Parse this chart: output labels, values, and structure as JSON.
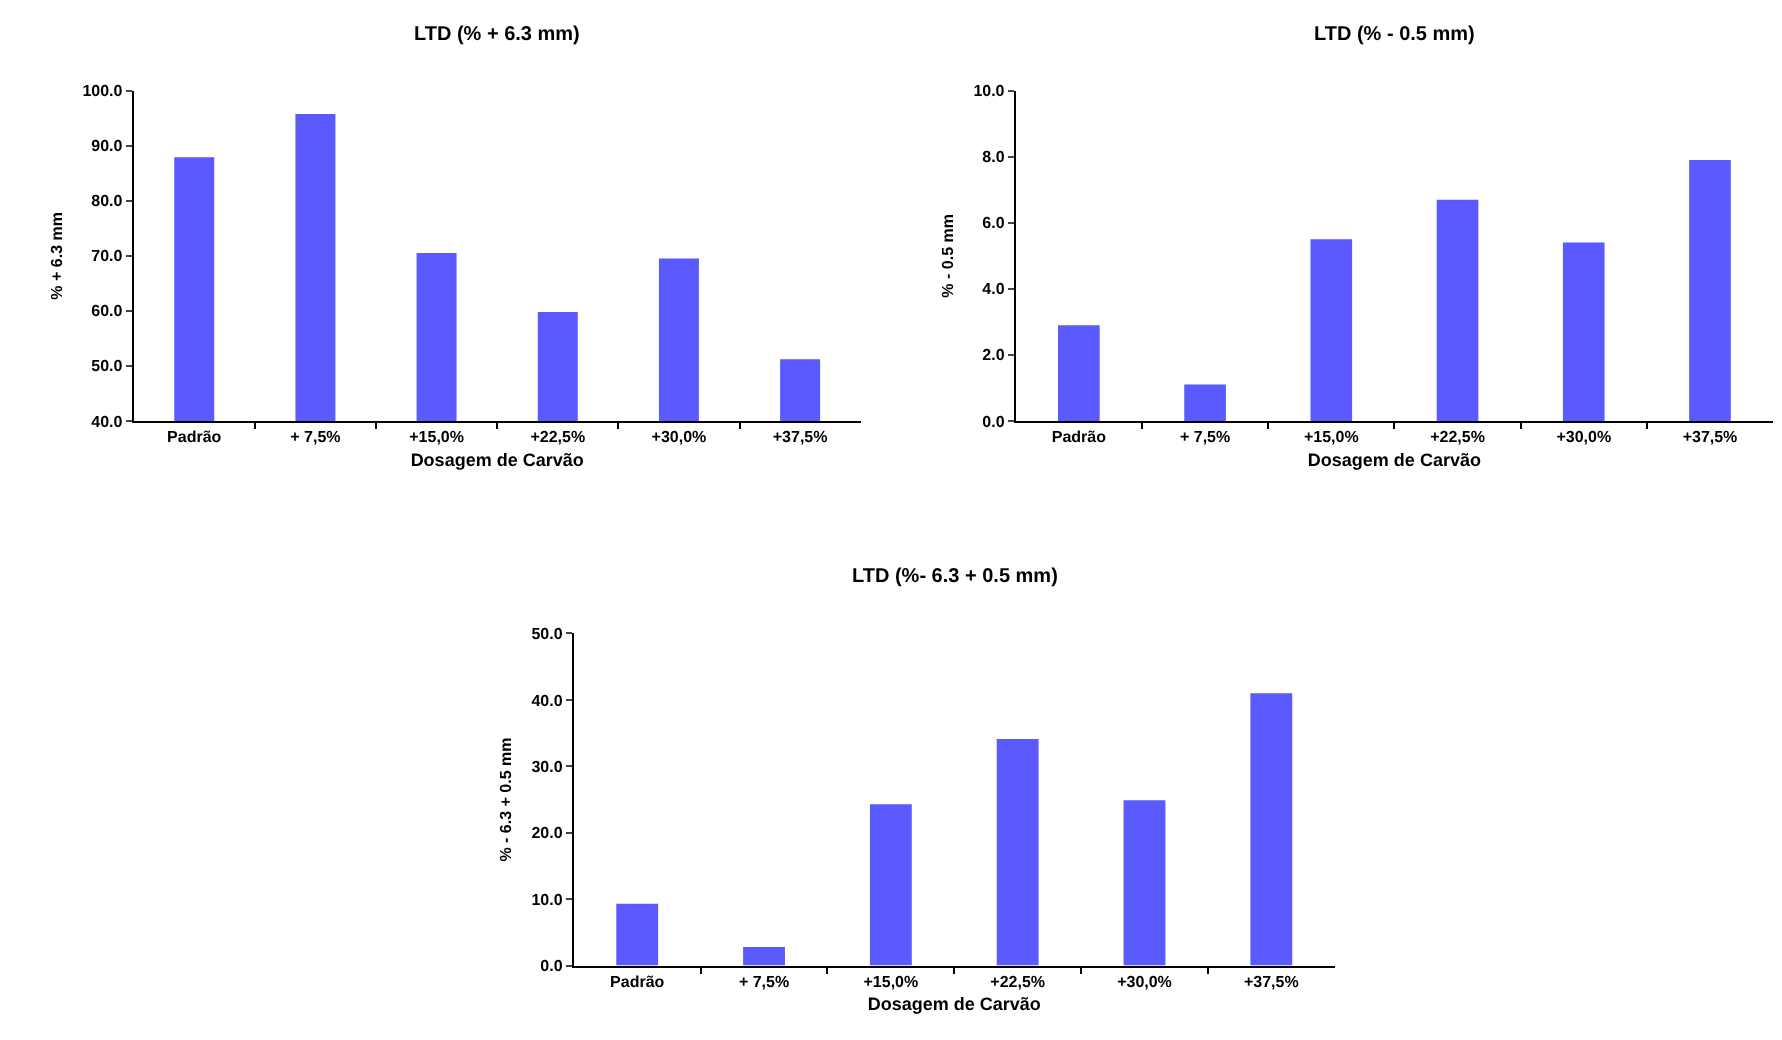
{
  "chart_data": [
    {
      "type": "bar",
      "title": "LTD (% + 6.3 mm)",
      "xlabel": "Dosagem de Carvão",
      "ylabel": "% + 6.3 mm",
      "categories": [
        "Padrão",
        "+ 7,5%",
        "+15,0%",
        "+22,5%",
        "+30,0%",
        "+37,5%"
      ],
      "values": [
        87.9,
        95.8,
        70.5,
        59.8,
        69.5,
        51.2
      ],
      "color": "#5a5aff",
      "ylim": [
        40,
        100
      ],
      "yticks": [
        {
          "value": 40,
          "label": "40.0"
        },
        {
          "value": 50,
          "label": "50.0"
        },
        {
          "value": 60,
          "label": "60.0"
        },
        {
          "value": 70,
          "label": "70.0"
        },
        {
          "value": 80,
          "label": "80.0"
        },
        {
          "value": 90,
          "label": "90.0"
        },
        {
          "value": 100,
          "label": "100.0"
        }
      ],
      "grid": false
    },
    {
      "type": "bar",
      "title": "LTD (% - 0.5 mm)",
      "xlabel": "Dosagem de Carvão",
      "ylabel": "% - 0.5 mm",
      "categories": [
        "Padrão",
        "+ 7,5%",
        "+15,0%",
        "+22,5%",
        "+30,0%",
        "+37,5%"
      ],
      "values": [
        2.9,
        1.1,
        5.5,
        6.7,
        5.4,
        7.9
      ],
      "color": "#5a5aff",
      "ylim": [
        0,
        10
      ],
      "yticks": [
        {
          "value": 0,
          "label": "0.0"
        },
        {
          "value": 2,
          "label": "2.0"
        },
        {
          "value": 4,
          "label": "4.0"
        },
        {
          "value": 6,
          "label": "6.0"
        },
        {
          "value": 8,
          "label": "8.0"
        },
        {
          "value": 10,
          "label": "10.0"
        }
      ],
      "grid": false
    },
    {
      "type": "bar",
      "title": "LTD (%- 6.3 + 0.5 mm)",
      "xlabel": "Dosagem de Carvão",
      "ylabel": "% - 6.3 + 0.5 mm",
      "categories": [
        "Padrão",
        "+ 7,5%",
        "+15,0%",
        "+22,5%",
        "+30,0%",
        "+37,5%"
      ],
      "values": [
        9.3,
        2.8,
        24.3,
        34.1,
        24.9,
        41.0
      ],
      "color": "#5a5aff",
      "ylim": [
        0,
        50
      ],
      "yticks": [
        {
          "value": 0,
          "label": "0.0"
        },
        {
          "value": 10,
          "label": "10.0"
        },
        {
          "value": 20,
          "label": "20.0"
        },
        {
          "value": 30,
          "label": "30.0"
        },
        {
          "value": 40,
          "label": "40.0"
        },
        {
          "value": 50,
          "label": "50.0"
        }
      ],
      "grid": false
    }
  ]
}
